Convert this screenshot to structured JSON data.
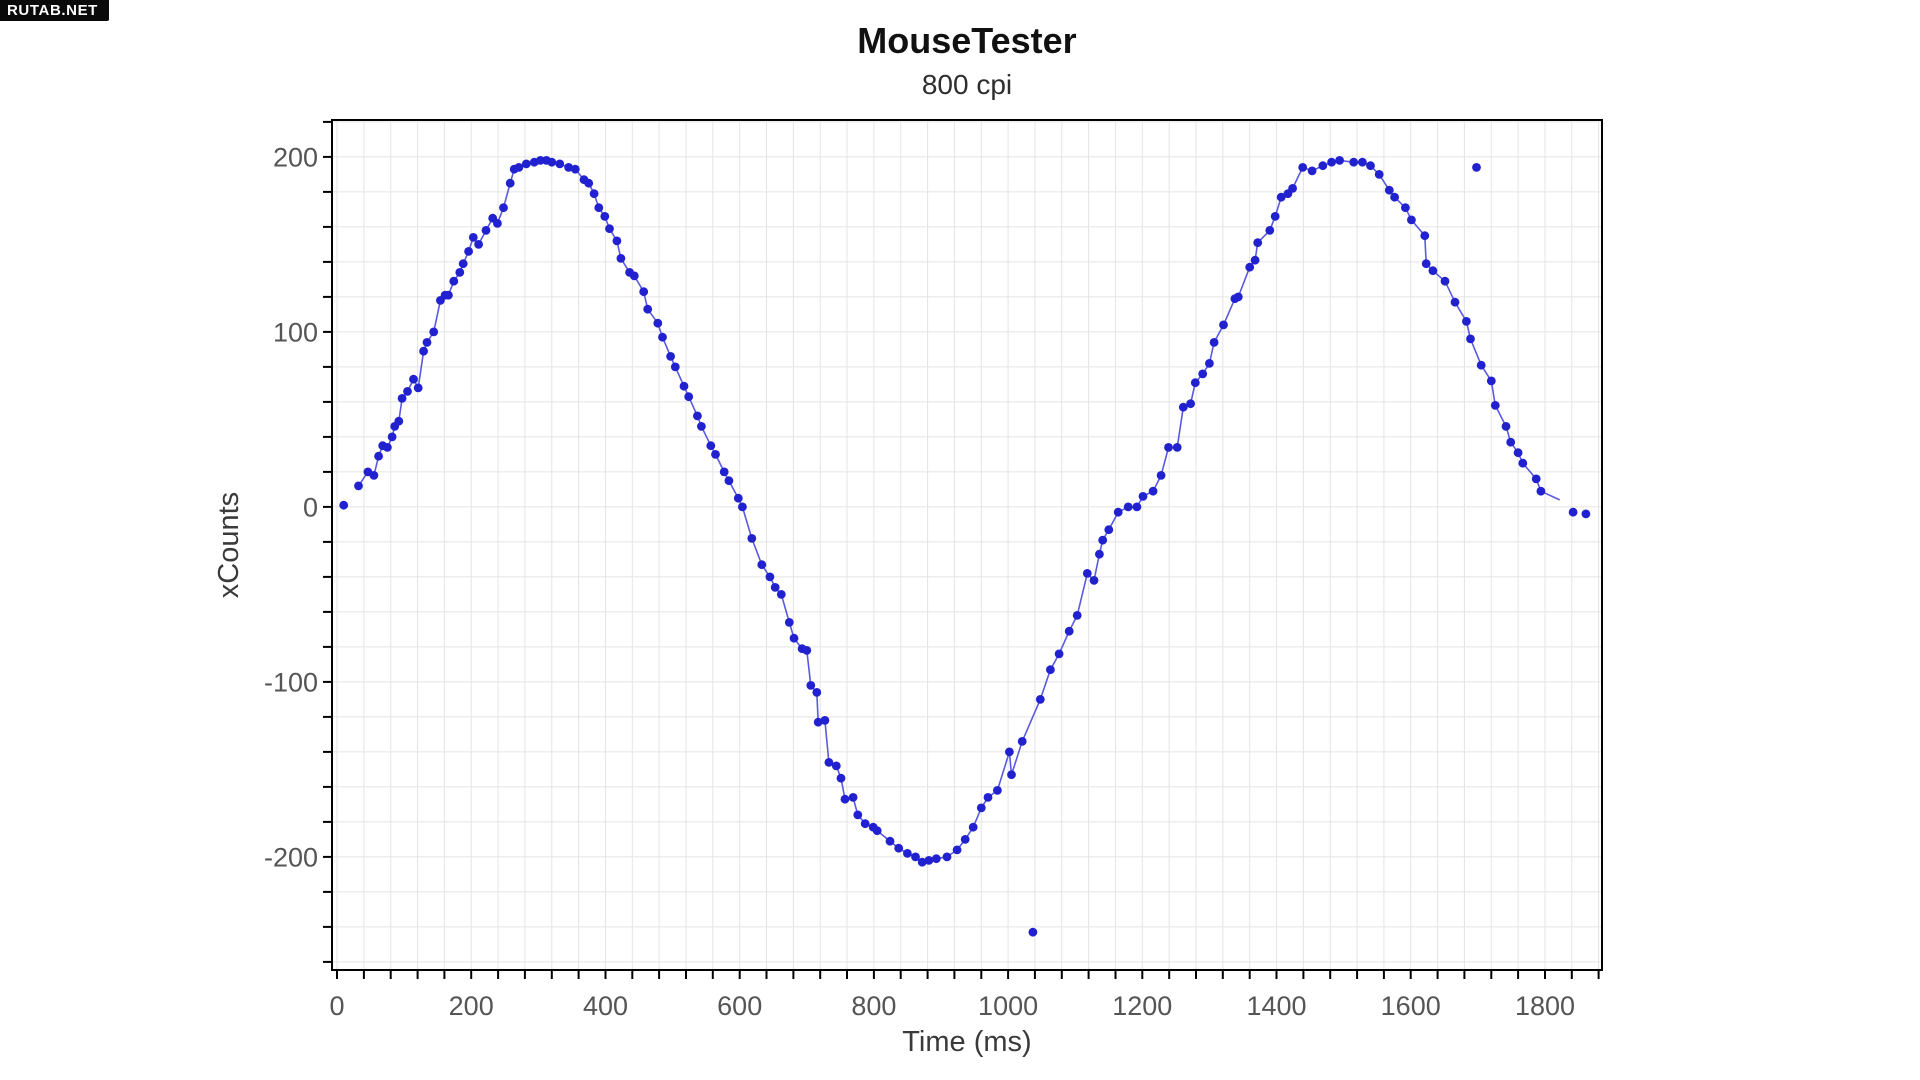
{
  "watermark": {
    "text": "RUTAB.NET"
  },
  "chart_data": {
    "type": "scatter",
    "title": "MouseTester",
    "subtitle": "800 cpi",
    "xlabel": "Time (ms)",
    "ylabel": "xCounts",
    "xlim": [
      -7.5,
      1885
    ],
    "ylim": [
      -264.6,
      221.1
    ],
    "grid": true,
    "legend_position": "none",
    "x_grid_step": 40,
    "x_tick_step": 40,
    "y_grid_step": 20,
    "y_tick_step": 20,
    "x_tick_labels": [
      "0",
      "200",
      "400",
      "600",
      "800",
      "1000",
      "1200",
      "1400",
      "1600",
      "1800"
    ],
    "x_tick_label_values": [
      0,
      200,
      400,
      600,
      800,
      1000,
      1200,
      1400,
      1600,
      1800
    ],
    "y_tick_labels": [
      "200",
      "100",
      "0",
      "-100",
      "-200"
    ],
    "y_tick_label_values": [
      200,
      100,
      0,
      -100,
      -200
    ],
    "colors": {
      "marker": "#2121d0",
      "line": "#5a5ae0",
      "grid": "#e4e4e4",
      "axis": "#000000",
      "tick_label": "#555555",
      "title": "#111111"
    },
    "point_format": "[time_ms, xCounts, flag] flag 1 = dot on line, 0 = isolated dot (no line), 2 = line vertex only (no dot)",
    "series": [
      {
        "name": "xCounts",
        "marker": "circle",
        "points": [
          [
            10,
            1,
            0
          ],
          [
            32,
            12,
            1
          ],
          [
            46,
            20,
            1
          ],
          [
            55,
            18,
            1
          ],
          [
            62,
            29,
            1
          ],
          [
            68,
            35,
            1
          ],
          [
            75,
            34,
            1
          ],
          [
            82,
            40,
            1
          ],
          [
            86,
            46,
            1
          ],
          [
            92,
            49,
            1
          ],
          [
            97,
            62,
            1
          ],
          [
            105,
            66,
            1
          ],
          [
            114,
            73,
            1
          ],
          [
            121,
            68,
            1
          ],
          [
            129,
            89,
            1
          ],
          [
            134,
            94,
            1
          ],
          [
            144,
            100,
            1
          ],
          [
            154,
            118,
            1
          ],
          [
            161,
            121,
            1
          ],
          [
            166,
            121,
            1
          ],
          [
            174,
            129,
            1
          ],
          [
            183,
            134,
            1
          ],
          [
            188,
            139,
            1
          ],
          [
            196,
            146,
            1
          ],
          [
            203,
            154,
            1
          ],
          [
            211,
            150,
            1
          ],
          [
            222,
            158,
            1
          ],
          [
            232,
            165,
            1
          ],
          [
            239,
            162,
            1
          ],
          [
            248,
            171,
            1
          ],
          [
            258,
            185,
            1
          ],
          [
            264,
            193,
            1
          ],
          [
            271,
            194,
            1
          ],
          [
            282,
            196,
            1
          ],
          [
            294,
            197,
            1
          ],
          [
            303,
            198,
            1
          ],
          [
            312,
            198,
            1
          ],
          [
            320,
            197,
            1
          ],
          [
            332,
            196,
            1
          ],
          [
            345,
            194,
            1
          ],
          [
            355,
            193,
            1
          ],
          [
            368,
            187,
            1
          ],
          [
            375,
            185,
            1
          ],
          [
            383,
            179,
            1
          ],
          [
            390,
            171,
            1
          ],
          [
            399,
            166,
            1
          ],
          [
            406,
            159,
            1
          ],
          [
            417,
            152,
            1
          ],
          [
            423,
            142,
            1
          ],
          [
            436,
            134,
            1
          ],
          [
            443,
            132,
            1
          ],
          [
            457,
            123,
            1
          ],
          [
            463,
            113,
            1
          ],
          [
            478,
            105,
            1
          ],
          [
            485,
            97,
            1
          ],
          [
            497,
            86,
            1
          ],
          [
            504,
            80,
            1
          ],
          [
            517,
            69,
            1
          ],
          [
            524,
            63,
            1
          ],
          [
            537,
            52,
            1
          ],
          [
            543,
            46,
            1
          ],
          [
            557,
            35,
            1
          ],
          [
            564,
            30,
            1
          ],
          [
            577,
            20,
            1
          ],
          [
            584,
            15,
            1
          ],
          [
            598,
            5,
            1
          ],
          [
            604,
            0,
            1
          ],
          [
            618,
            -18,
            1
          ],
          [
            633,
            -33,
            1
          ],
          [
            645,
            -40,
            1
          ],
          [
            653,
            -46,
            1
          ],
          [
            662,
            -50,
            1
          ],
          [
            674,
            -66,
            1
          ],
          [
            681,
            -75,
            1
          ],
          [
            693,
            -81,
            1
          ],
          [
            700,
            -82,
            1
          ],
          [
            706,
            -102,
            1
          ],
          [
            715,
            -106,
            1
          ],
          [
            717,
            -123,
            1
          ],
          [
            727,
            -122,
            1
          ],
          [
            733,
            -146,
            1
          ],
          [
            744,
            -148,
            1
          ],
          [
            751,
            -155,
            1
          ],
          [
            757,
            -167,
            1
          ],
          [
            769,
            -166,
            1
          ],
          [
            776,
            -176,
            1
          ],
          [
            787,
            -181,
            1
          ],
          [
            799,
            -183,
            1
          ],
          [
            805,
            -185,
            1
          ],
          [
            824,
            -191,
            1
          ],
          [
            837,
            -195,
            1
          ],
          [
            850,
            -198,
            1
          ],
          [
            862,
            -200,
            1
          ],
          [
            872,
            -203,
            1
          ],
          [
            882,
            -202,
            1
          ],
          [
            893,
            -201,
            1
          ],
          [
            909,
            -200,
            1
          ],
          [
            924,
            -196,
            1
          ],
          [
            936,
            -190,
            1
          ],
          [
            948,
            -183,
            1
          ],
          [
            960,
            -172,
            1
          ],
          [
            970,
            -166,
            1
          ],
          [
            984,
            -162,
            1
          ],
          [
            1002,
            -140,
            1
          ],
          [
            1005,
            -153,
            1
          ],
          [
            1021,
            -134,
            1
          ],
          [
            1037,
            -243,
            0
          ],
          [
            1048,
            -110,
            1
          ],
          [
            1063,
            -93,
            1
          ],
          [
            1076,
            -84,
            1
          ],
          [
            1091,
            -71,
            1
          ],
          [
            1103,
            -62,
            1
          ],
          [
            1118,
            -38,
            1
          ],
          [
            1128,
            -42,
            1
          ],
          [
            1136,
            -27,
            1
          ],
          [
            1141,
            -19,
            1
          ],
          [
            1150,
            -13,
            1
          ],
          [
            1164,
            -3,
            1
          ],
          [
            1179,
            0,
            1
          ],
          [
            1192,
            0,
            1
          ],
          [
            1201,
            6,
            1
          ],
          [
            1216,
            9,
            1
          ],
          [
            1228,
            18,
            1
          ],
          [
            1239,
            34,
            1
          ],
          [
            1252,
            34,
            1
          ],
          [
            1261,
            57,
            1
          ],
          [
            1272,
            59,
            1
          ],
          [
            1279,
            71,
            1
          ],
          [
            1290,
            76,
            1
          ],
          [
            1300,
            82,
            1
          ],
          [
            1307,
            94,
            1
          ],
          [
            1321,
            104,
            1
          ],
          [
            1338,
            119,
            1
          ],
          [
            1343,
            120,
            1
          ],
          [
            1360,
            137,
            1
          ],
          [
            1368,
            141,
            1
          ],
          [
            1372,
            151,
            1
          ],
          [
            1390,
            158,
            1
          ],
          [
            1398,
            166,
            1
          ],
          [
            1407,
            177,
            1
          ],
          [
            1417,
            179,
            1
          ],
          [
            1424,
            182,
            1
          ],
          [
            1439,
            194,
            1
          ],
          [
            1453,
            192,
            1
          ],
          [
            1469,
            195,
            1
          ],
          [
            1482,
            197,
            1
          ],
          [
            1494,
            198,
            1
          ],
          [
            1515,
            197,
            1
          ],
          [
            1528,
            197,
            1
          ],
          [
            1540,
            195,
            1
          ],
          [
            1553,
            190,
            1
          ],
          [
            1568,
            181,
            1
          ],
          [
            1576,
            177,
            1
          ],
          [
            1592,
            171,
            1
          ],
          [
            1601,
            164,
            1
          ],
          [
            1621,
            155,
            1
          ],
          [
            1623,
            139,
            1
          ],
          [
            1633,
            135,
            1
          ],
          [
            1651,
            129,
            1
          ],
          [
            1666,
            117,
            1
          ],
          [
            1683,
            106,
            1
          ],
          [
            1689,
            96,
            1
          ],
          [
            1698,
            194,
            0
          ],
          [
            1705,
            81,
            1
          ],
          [
            1720,
            72,
            1
          ],
          [
            1726,
            58,
            1
          ],
          [
            1742,
            46,
            1
          ],
          [
            1749,
            37,
            1
          ],
          [
            1760,
            31,
            1
          ],
          [
            1767,
            25,
            1
          ],
          [
            1787,
            16,
            1
          ],
          [
            1794,
            9,
            1
          ],
          [
            1822,
            4,
            2
          ],
          [
            1842,
            -3,
            0
          ],
          [
            1861,
            -4,
            0
          ]
        ]
      }
    ]
  }
}
